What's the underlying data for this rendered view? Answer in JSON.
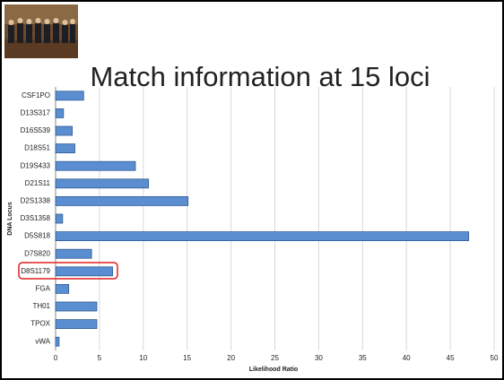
{
  "chart_data": {
    "type": "bar",
    "orientation": "horizontal",
    "title": "Match information at 15 loci",
    "x_label": "Likelihood Ratio",
    "y_label": "DNA Locus",
    "categories": [
      "CSF1PO",
      "D13S317",
      "D16S539",
      "D18S51",
      "D19S433",
      "D21S11",
      "D2S1338",
      "D3S1358",
      "D5S818",
      "D7S820",
      "D8S1179",
      "FGA",
      "TH01",
      "TPOX",
      "vWA"
    ],
    "values": [
      3.2,
      0.9,
      1.9,
      2.2,
      9.1,
      10.6,
      15.1,
      0.8,
      47.1,
      4.1,
      6.5,
      1.5,
      4.7,
      4.7,
      0.4
    ],
    "color": "#5a8ed0",
    "xlim": [
      0,
      50
    ],
    "xticks": [
      0,
      5,
      10,
      15,
      20,
      25,
      30,
      35,
      40,
      45,
      50
    ],
    "grid": true
  }
}
